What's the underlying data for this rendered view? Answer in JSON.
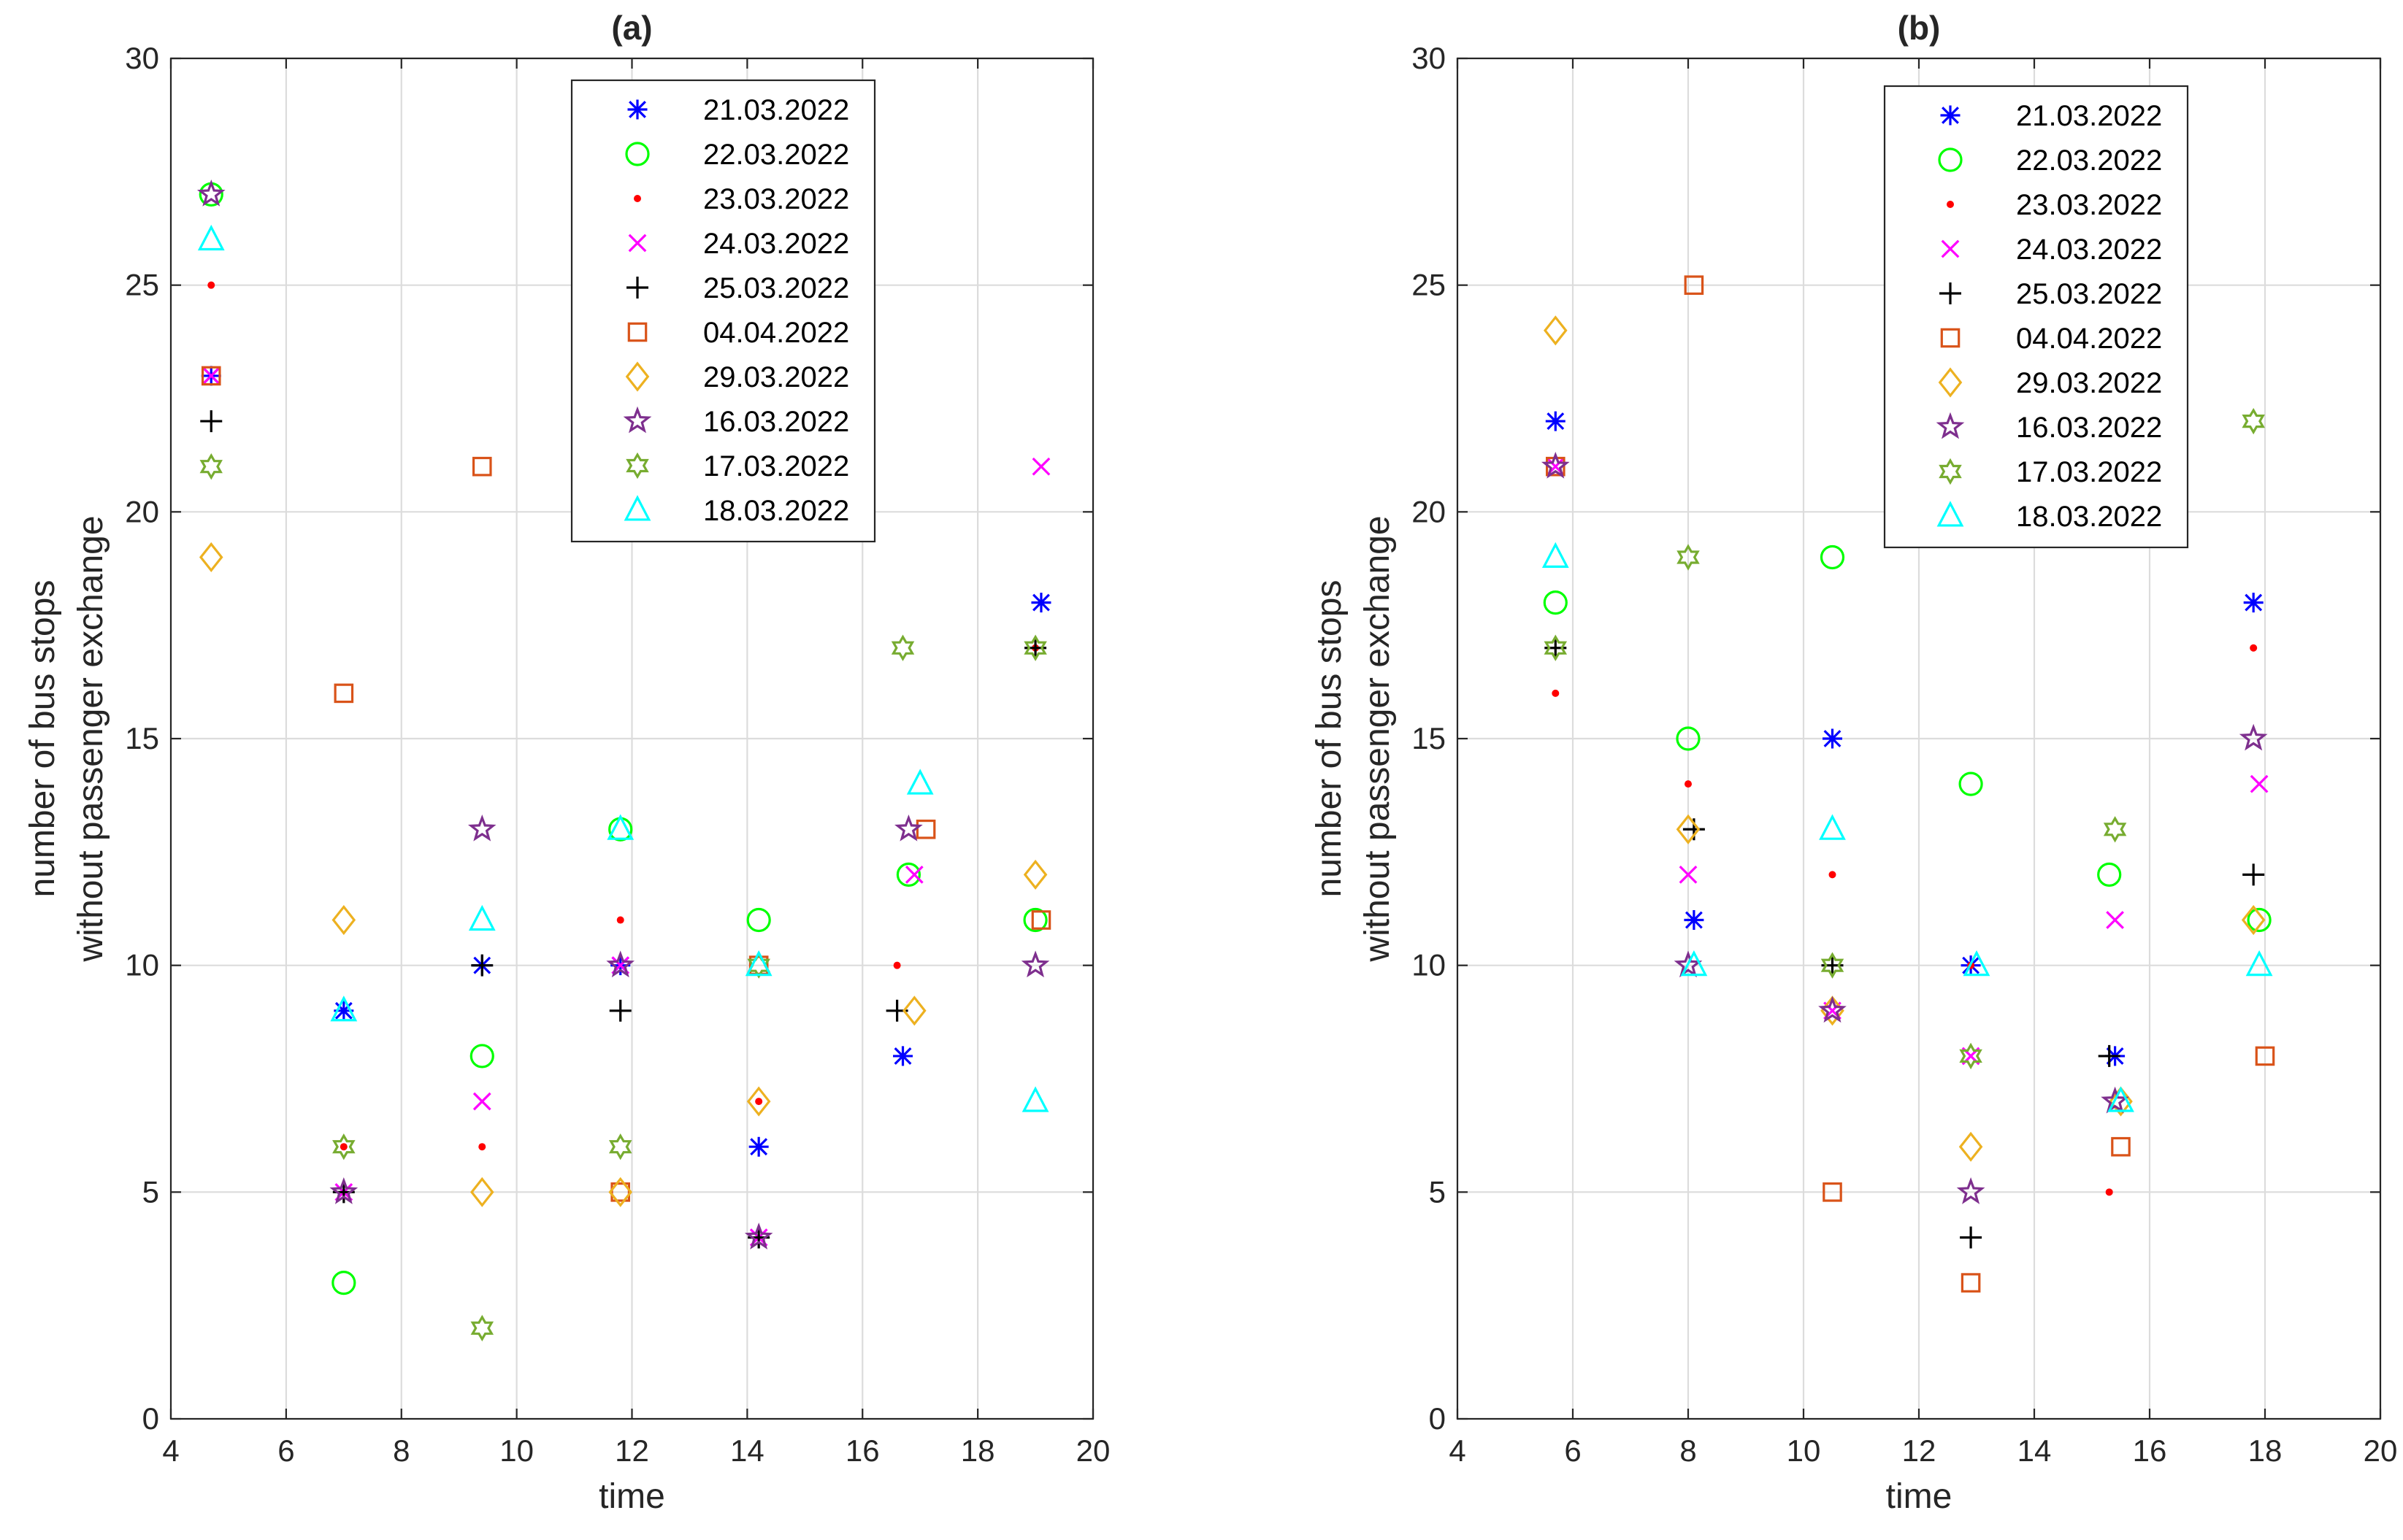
{
  "chart_data": [
    {
      "type": "scatter",
      "title": "(a)",
      "xlabel": "time",
      "ylabel": [
        "number of bus stops",
        "without passenger exchange"
      ],
      "xlim": [
        4,
        20
      ],
      "ylim": [
        0,
        30
      ],
      "xticks": [
        "4",
        "6",
        "8",
        "10",
        "12",
        "14",
        "16",
        "18",
        "20"
      ],
      "yticks": [
        "0",
        "5",
        "10",
        "15",
        "20",
        "25",
        "30"
      ],
      "grid": true,
      "legend_position": "top-center",
      "series": [
        {
          "name": "21.03.2022",
          "marker": "asterisk",
          "color": "#0000FF",
          "points": [
            [
              4.7,
              23
            ],
            [
              7.0,
              9
            ],
            [
              9.4,
              10
            ],
            [
              11.8,
              10
            ],
            [
              14.2,
              6
            ],
            [
              16.7,
              8
            ],
            [
              19.1,
              18
            ]
          ]
        },
        {
          "name": "22.03.2022",
          "marker": "circle",
          "color": "#00FF00",
          "points": [
            [
              4.7,
              27
            ],
            [
              7.0,
              3
            ],
            [
              9.4,
              8
            ],
            [
              11.8,
              13
            ],
            [
              14.2,
              11
            ],
            [
              16.8,
              12
            ],
            [
              19.0,
              11
            ]
          ]
        },
        {
          "name": "23.03.2022",
          "marker": "dot",
          "color": "#FF0000",
          "points": [
            [
              4.7,
              25
            ],
            [
              7.0,
              6
            ],
            [
              9.4,
              6
            ],
            [
              11.8,
              11
            ],
            [
              14.2,
              7
            ],
            [
              16.6,
              10
            ],
            [
              19.0,
              17
            ]
          ]
        },
        {
          "name": "24.03.2022",
          "marker": "x",
          "color": "#FF00FF",
          "points": [
            [
              4.7,
              23
            ],
            [
              7.0,
              5
            ],
            [
              9.4,
              7
            ],
            [
              11.8,
              10
            ],
            [
              14.2,
              4
            ],
            [
              16.9,
              12
            ],
            [
              19.1,
              21
            ]
          ]
        },
        {
          "name": "25.03.2022",
          "marker": "plus",
          "color": "#000000",
          "points": [
            [
              4.7,
              22
            ],
            [
              7.0,
              5
            ],
            [
              9.4,
              10
            ],
            [
              11.8,
              9
            ],
            [
              14.2,
              4
            ],
            [
              16.6,
              9
            ],
            [
              19.0,
              17
            ]
          ]
        },
        {
          "name": "04.04.2022",
          "marker": "square",
          "color": "#D95319",
          "points": [
            [
              4.7,
              23
            ],
            [
              7.0,
              16
            ],
            [
              9.4,
              21
            ],
            [
              11.8,
              5
            ],
            [
              14.2,
              10
            ],
            [
              17.1,
              13
            ],
            [
              19.1,
              11
            ]
          ]
        },
        {
          "name": "29.03.2022",
          "marker": "diamond",
          "color": "#EDB120",
          "points": [
            [
              4.7,
              19
            ],
            [
              7.0,
              11
            ],
            [
              9.4,
              5
            ],
            [
              11.8,
              5
            ],
            [
              14.2,
              7
            ],
            [
              16.9,
              9
            ],
            [
              19.0,
              12
            ]
          ]
        },
        {
          "name": "16.03.2022",
          "marker": "pentagram",
          "color": "#7E2F8E",
          "points": [
            [
              4.7,
              27
            ],
            [
              7.0,
              5
            ],
            [
              9.4,
              13
            ],
            [
              11.8,
              10
            ],
            [
              14.2,
              4
            ],
            [
              16.8,
              13
            ],
            [
              19.0,
              10
            ]
          ]
        },
        {
          "name": "17.03.2022",
          "marker": "hexagram",
          "color": "#77AC30",
          "points": [
            [
              4.7,
              21
            ],
            [
              7.0,
              6
            ],
            [
              9.4,
              2
            ],
            [
              11.8,
              6
            ],
            [
              14.2,
              10
            ],
            [
              16.7,
              17
            ],
            [
              19.0,
              17
            ]
          ]
        },
        {
          "name": "18.03.2022",
          "marker": "triangle",
          "color": "#00FFFF",
          "points": [
            [
              4.7,
              26
            ],
            [
              7.0,
              9
            ],
            [
              9.4,
              11
            ],
            [
              11.8,
              13
            ],
            [
              14.2,
              10
            ],
            [
              17.0,
              14
            ],
            [
              19.0,
              7
            ]
          ]
        }
      ]
    },
    {
      "type": "scatter",
      "title": "(b)",
      "xlabel": "time",
      "ylabel": [
        "number of bus stops",
        "without passenger exchange"
      ],
      "xlim": [
        4,
        20
      ],
      "ylim": [
        0,
        30
      ],
      "xticks": [
        "4",
        "6",
        "8",
        "10",
        "12",
        "14",
        "16",
        "18",
        "20"
      ],
      "yticks": [
        "0",
        "5",
        "10",
        "15",
        "20",
        "25",
        "30"
      ],
      "grid": true,
      "legend_position": "top-right",
      "series": [
        {
          "name": "21.03.2022",
          "marker": "asterisk",
          "color": "#0000FF",
          "points": [
            [
              5.7,
              22
            ],
            [
              8.1,
              11
            ],
            [
              10.5,
              15
            ],
            [
              12.9,
              10
            ],
            [
              15.4,
              8
            ],
            [
              17.8,
              18
            ]
          ]
        },
        {
          "name": "22.03.2022",
          "marker": "circle",
          "color": "#00FF00",
          "points": [
            [
              5.7,
              18
            ],
            [
              8.0,
              15
            ],
            [
              10.5,
              19
            ],
            [
              12.9,
              14
            ],
            [
              15.3,
              12
            ],
            [
              17.9,
              11
            ]
          ]
        },
        {
          "name": "23.03.2022",
          "marker": "dot",
          "color": "#FF0000",
          "points": [
            [
              5.7,
              16
            ],
            [
              8.0,
              14
            ],
            [
              10.5,
              12
            ],
            [
              12.9,
              10
            ],
            [
              15.3,
              5
            ],
            [
              17.8,
              17
            ]
          ]
        },
        {
          "name": "24.03.2022",
          "marker": "x",
          "color": "#FF00FF",
          "points": [
            [
              5.7,
              21
            ],
            [
              8.0,
              12
            ],
            [
              10.5,
              9
            ],
            [
              12.9,
              8
            ],
            [
              15.4,
              11
            ],
            [
              17.9,
              14
            ]
          ]
        },
        {
          "name": "25.03.2022",
          "marker": "plus",
          "color": "#000000",
          "points": [
            [
              5.7,
              17
            ],
            [
              8.1,
              13
            ],
            [
              10.5,
              10
            ],
            [
              12.9,
              4
            ],
            [
              15.3,
              8
            ],
            [
              17.8,
              12
            ]
          ]
        },
        {
          "name": "04.04.2022",
          "marker": "square",
          "color": "#D95319",
          "points": [
            [
              5.7,
              21
            ],
            [
              8.1,
              25
            ],
            [
              10.5,
              5
            ],
            [
              12.9,
              3
            ],
            [
              15.5,
              6
            ],
            [
              18.0,
              8
            ]
          ]
        },
        {
          "name": "29.03.2022",
          "marker": "diamond",
          "color": "#EDB120",
          "points": [
            [
              5.7,
              24
            ],
            [
              8.0,
              13
            ],
            [
              10.5,
              9
            ],
            [
              12.9,
              6
            ],
            [
              15.5,
              7
            ],
            [
              17.8,
              11
            ]
          ]
        },
        {
          "name": "16.03.2022",
          "marker": "pentagram",
          "color": "#7E2F8E",
          "points": [
            [
              5.7,
              21
            ],
            [
              8.0,
              10
            ],
            [
              10.5,
              9
            ],
            [
              12.9,
              5
            ],
            [
              15.4,
              7
            ],
            [
              17.8,
              15
            ]
          ]
        },
        {
          "name": "17.03.2022",
          "marker": "hexagram",
          "color": "#77AC30",
          "points": [
            [
              5.7,
              17
            ],
            [
              8.0,
              19
            ],
            [
              10.5,
              10
            ],
            [
              12.9,
              8
            ],
            [
              15.4,
              13
            ],
            [
              17.8,
              22
            ]
          ]
        },
        {
          "name": "18.03.2022",
          "marker": "triangle",
          "color": "#00FFFF",
          "points": [
            [
              5.7,
              19
            ],
            [
              8.1,
              10
            ],
            [
              10.5,
              13
            ],
            [
              13.0,
              10
            ],
            [
              15.5,
              7
            ],
            [
              17.9,
              10
            ]
          ]
        }
      ]
    }
  ]
}
